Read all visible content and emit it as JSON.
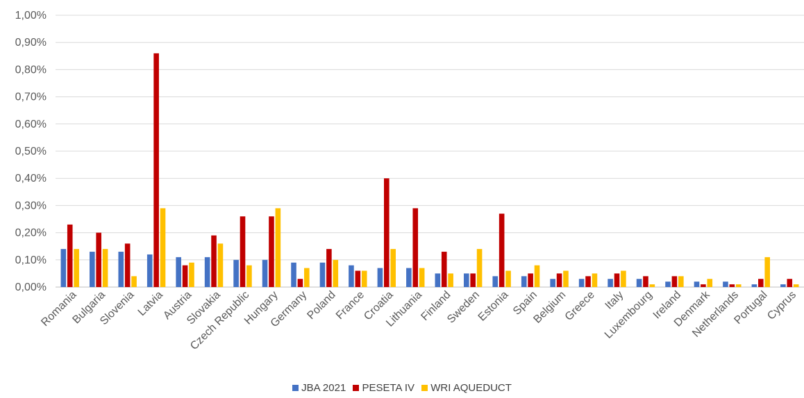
{
  "chart_data": {
    "type": "bar",
    "title": "",
    "xlabel": "",
    "ylabel": "",
    "ylim": [
      0,
      1.0
    ],
    "y_ticks": [
      "0,00%",
      "0,10%",
      "0,20%",
      "0,30%",
      "0,40%",
      "0,50%",
      "0,60%",
      "0,70%",
      "0,80%",
      "0,90%",
      "1,00%"
    ],
    "grid": true,
    "legend_position": "bottom",
    "categories": [
      "Romania",
      "Bulgaria",
      "Slovenia",
      "Latvia",
      "Austria",
      "Slovakia",
      "Czech Republic",
      "Hungary",
      "Germany",
      "Poland",
      "France",
      "Croatia",
      "Lithuania",
      "Finland",
      "Sweden",
      "Estonia",
      "Spain",
      "Belgium",
      "Greece",
      "Italy",
      "Luxembourg",
      "Ireland",
      "Denmark",
      "Netherlands",
      "Portugal",
      "Cyprus"
    ],
    "series": [
      {
        "name": "JBA 2021",
        "color": "#4472C4",
        "values": [
          0.14,
          0.13,
          0.13,
          0.12,
          0.11,
          0.11,
          0.1,
          0.1,
          0.09,
          0.09,
          0.08,
          0.07,
          0.07,
          0.05,
          0.05,
          0.04,
          0.04,
          0.03,
          0.03,
          0.03,
          0.03,
          0.02,
          0.02,
          0.02,
          0.01,
          0.01
        ]
      },
      {
        "name": "PESETA IV",
        "color": "#C00000",
        "values": [
          0.23,
          0.2,
          0.16,
          0.86,
          0.08,
          0.19,
          0.26,
          0.26,
          0.03,
          0.14,
          0.06,
          0.4,
          0.29,
          0.13,
          0.05,
          0.27,
          0.05,
          0.05,
          0.04,
          0.05,
          0.04,
          0.04,
          0.01,
          0.01,
          0.03,
          0.03
        ]
      },
      {
        "name": "WRI AQUEDUCT",
        "color": "#FFC000",
        "values": [
          0.14,
          0.14,
          0.04,
          0.29,
          0.09,
          0.16,
          0.08,
          0.29,
          0.07,
          0.1,
          0.06,
          0.14,
          0.07,
          0.05,
          0.14,
          0.06,
          0.08,
          0.06,
          0.05,
          0.06,
          0.01,
          0.04,
          0.03,
          0.01,
          0.11,
          0.01
        ]
      }
    ]
  }
}
